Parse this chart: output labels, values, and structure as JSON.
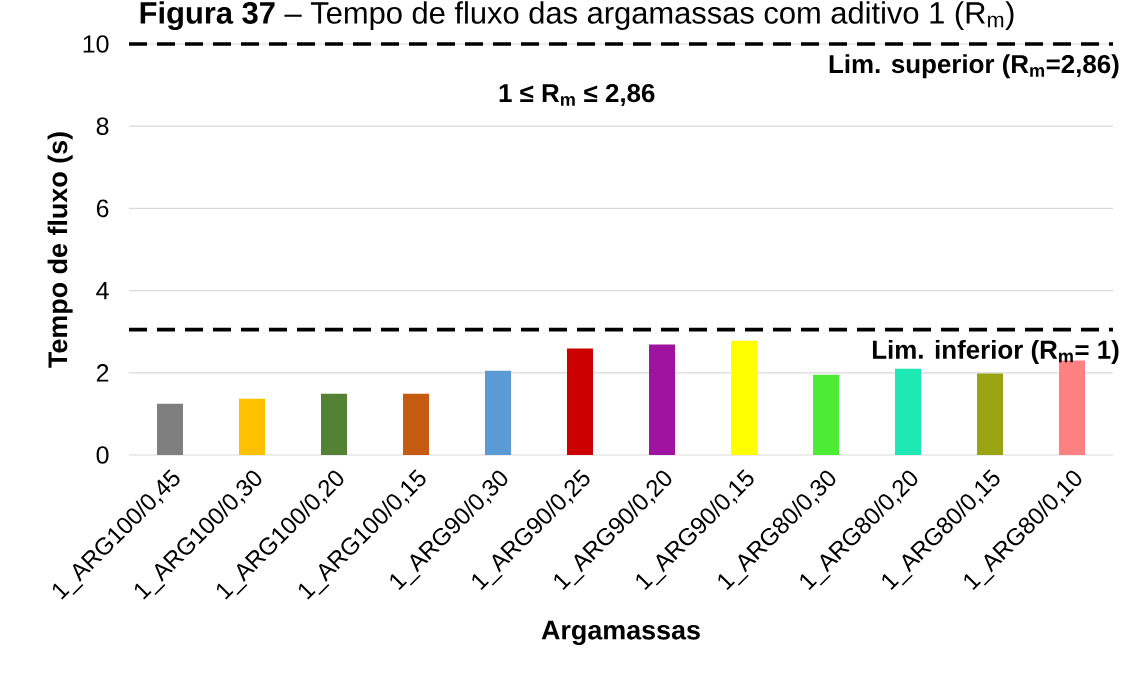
{
  "chart_data": {
    "type": "bar",
    "title": "**Figura 37** – Tempo de fluxo das argamassas com aditivo 1 (R$_{m}$)",
    "xlabel": "Argamassas",
    "ylabel": "Tempo de fluxo (s)",
    "categories": [
      "1_ARG100/0,45",
      "1_ARG100/0,30",
      "1_ARG100/0,20",
      "1_ARG100/0,15",
      "1_ARG90/0,30",
      "1_ARG90/0,25",
      "1_ARG90/0,20",
      "1_ARG90/0,15",
      "1_ARG80/0,30",
      "1_ARG80/0,20",
      "1_ARG80/0,15",
      "1_ARG80/0,10"
    ],
    "values": [
      1.25,
      1.37,
      1.49,
      1.49,
      2.05,
      2.59,
      2.69,
      2.78,
      1.95,
      2.1,
      1.98,
      2.3
    ],
    "colors": [
      "#7f7f7f",
      "#ffc000",
      "#548235",
      "#c55a11",
      "#5b9bd5",
      "#cc0000",
      "#9e14a0",
      "#ffff00",
      "#4cec34",
      "#1ee8b4",
      "#9aa312",
      "#ff8080"
    ],
    "ylim": [
      0,
      10
    ],
    "yticks": [
      0,
      2,
      4,
      6,
      8,
      10
    ],
    "grid": "y",
    "ref_lines": [
      {
        "axis": "y",
        "value": 10,
        "color": "#000000",
        "line_style": "dashed"
      },
      {
        "axis": "y",
        "value": 3.05,
        "color": "#000000",
        "line_style": "dashed"
      }
    ],
    "annotations": [
      "1 ≤ R$_{m}$ ≤ 2,86",
      {
        "text": "Lim. superior (R$_{m}$=2,86)",
        "y": 10
      },
      {
        "text": "Lim. inferior (R$_{m}$= 1)",
        "y": 3.05
      }
    ]
  }
}
